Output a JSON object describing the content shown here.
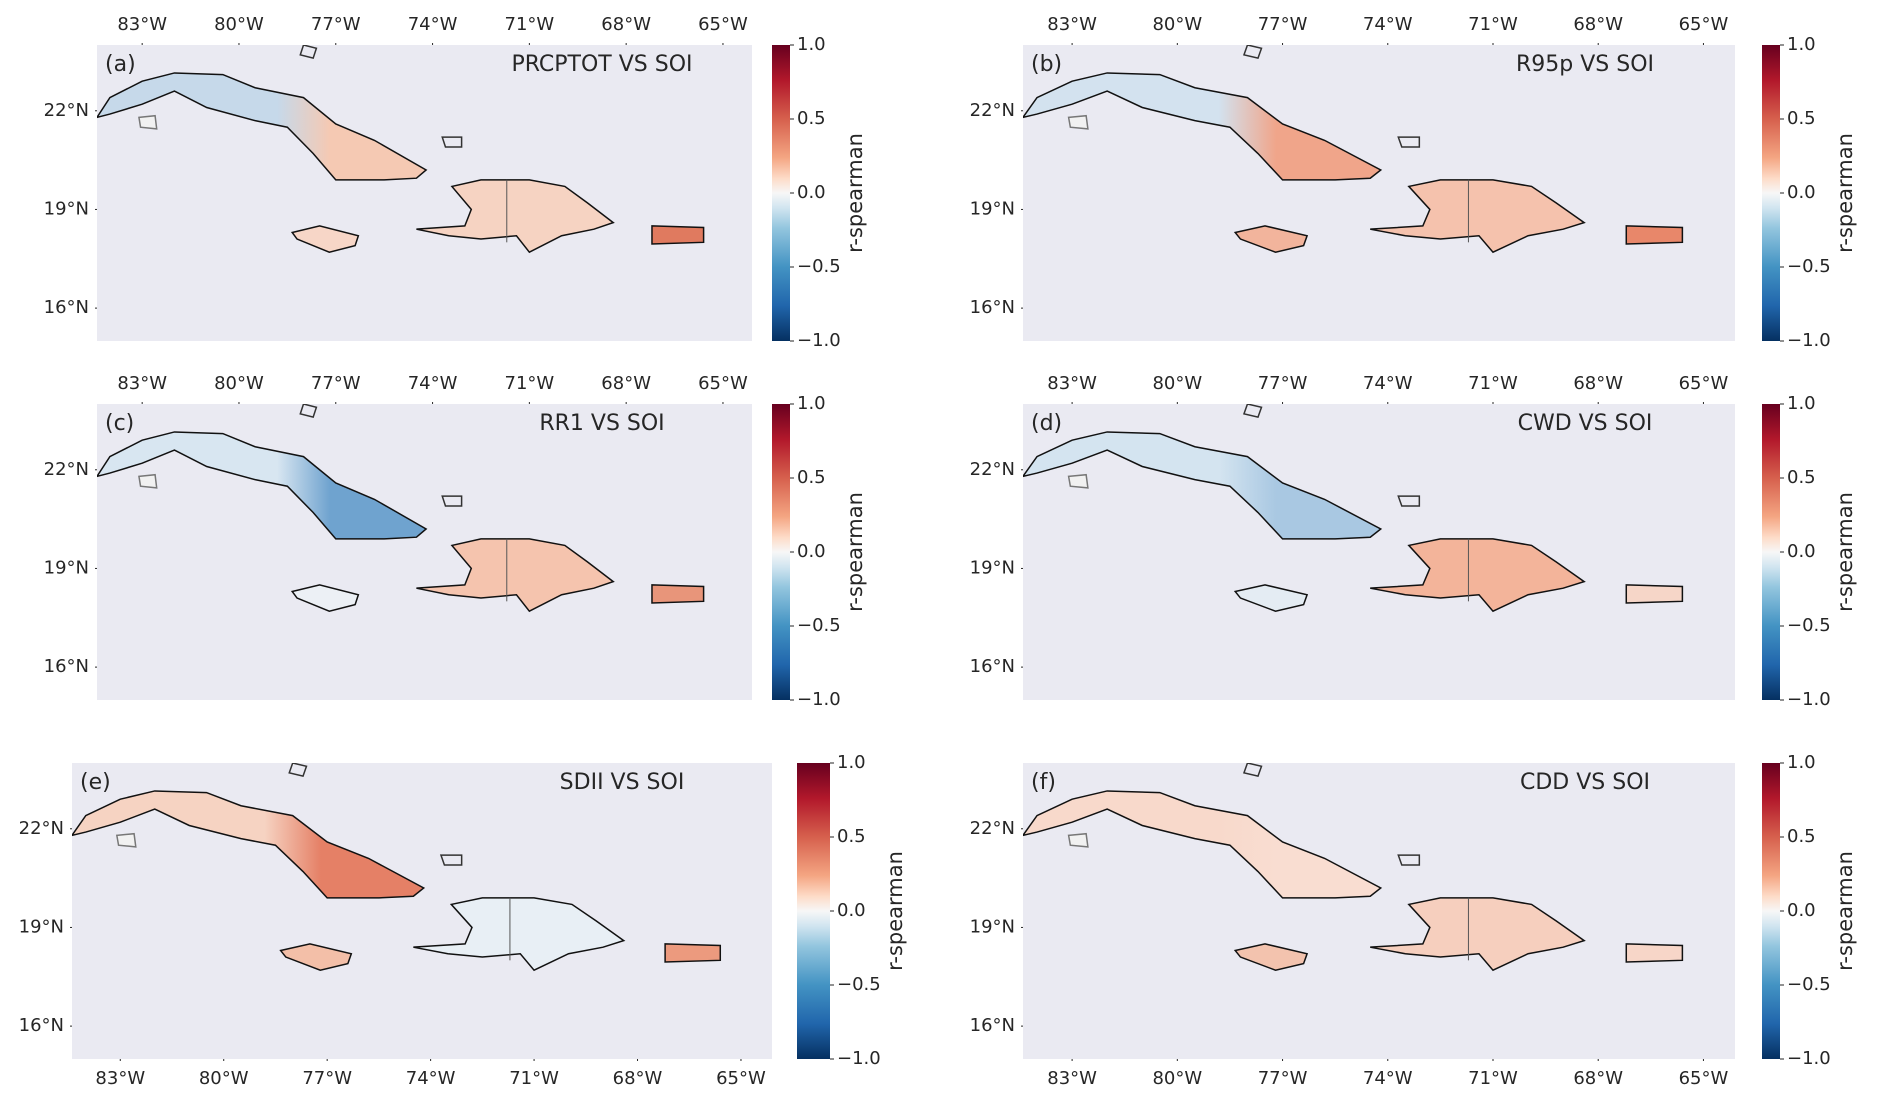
{
  "axes": {
    "lonlim": [
      -84.4,
      -64.1
    ],
    "latlim": [
      15,
      24
    ],
    "lon_ticks": [
      {
        "value": -83,
        "label": "83°W"
      },
      {
        "value": -80,
        "label": "80°W"
      },
      {
        "value": -77,
        "label": "77°W"
      },
      {
        "value": -74,
        "label": "74°W"
      },
      {
        "value": -71,
        "label": "71°W"
      },
      {
        "value": -68,
        "label": "68°W"
      },
      {
        "value": -65,
        "label": "65°W"
      }
    ],
    "lat_ticks": [
      {
        "value": 16,
        "label": "16°N"
      },
      {
        "value": 19,
        "label": "19°N"
      },
      {
        "value": 22,
        "label": "22°N"
      }
    ],
    "colorbar": {
      "label": "r-spearman",
      "lim": [
        -1,
        1
      ],
      "ticks": [
        {
          "value": -1,
          "label": "−1.0"
        },
        {
          "value": -0.5,
          "label": "−0.5"
        },
        {
          "value": 0,
          "label": "0.0"
        },
        {
          "value": 0.5,
          "label": "0.5"
        },
        {
          "value": 1,
          "label": "1.0"
        }
      ]
    }
  },
  "panels": [
    {
      "label": "(a)",
      "title": "PRCPTOT VS SOI",
      "island_colors": {
        "cuba_west": "#c6d9ea",
        "cuba_east": "#f5c9b3",
        "hispaniola": "#f6d3c2",
        "jamaica": "#f7d6c7",
        "puerto_rico": "#e07a5f"
      }
    },
    {
      "label": "(b)",
      "title": "R95p VS SOI",
      "island_colors": {
        "cuba_west": "#d3e2ef",
        "cuba_east": "#f0a58a",
        "hispaniola": "#f5c2ad",
        "jamaica": "#f2b49c",
        "puerto_rico": "#e8876a"
      }
    },
    {
      "label": "(c)",
      "title": "RR1 VS SOI",
      "island_colors": {
        "cuba_west": "#d8e6f1",
        "cuba_east": "#6fa3cf",
        "hispaniola": "#f5c4ae",
        "jamaica": "#ecf0f5",
        "puerto_rico": "#e8957a"
      }
    },
    {
      "label": "(d)",
      "title": "CWD VS SOI",
      "island_colors": {
        "cuba_west": "#d4e4f0",
        "cuba_east": "#a9c8e2",
        "hispaniola": "#f3b49a",
        "jamaica": "#e4ecf3",
        "puerto_rico": "#f6d6c8"
      }
    },
    {
      "label": "(e)",
      "title": "SDII VS SOI",
      "island_colors": {
        "cuba_west": "#f6d3c2",
        "cuba_east": "#e58066",
        "hispaniola": "#e8eff5",
        "jamaica": "#f3bfa8",
        "puerto_rico": "#ec9a7e"
      }
    },
    {
      "label": "(f)",
      "title": "CDD VS SOI",
      "island_colors": {
        "cuba_west": "#f8d9cb",
        "cuba_east": "#f9ddd1",
        "hispaniola": "#f6cfbe",
        "jamaica": "#f3c3ae",
        "puerto_rico": "#f7d6c8"
      }
    }
  ]
}
